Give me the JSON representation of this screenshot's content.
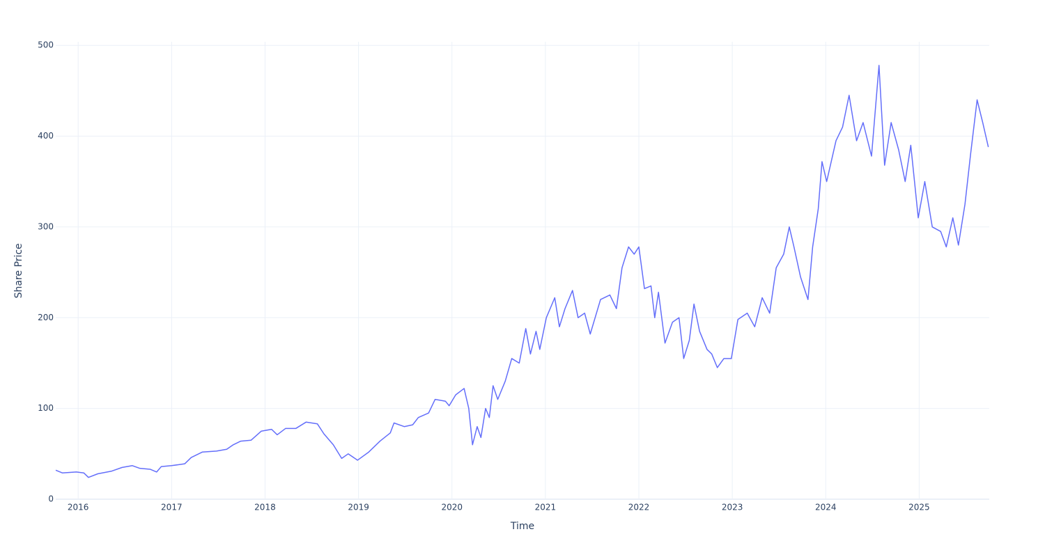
{
  "chart_data": {
    "type": "line",
    "xlabel": "Time",
    "ylabel": "Share Price",
    "xlim": [
      2015.76,
      2025.75
    ],
    "xticks": [
      2016,
      2017,
      2018,
      2019,
      2020,
      2021,
      2022,
      2023,
      2024,
      2025
    ],
    "ylim": [
      0,
      504
    ],
    "yticks": [
      0,
      100,
      200,
      300,
      400,
      500
    ],
    "grid": true,
    "x": [
      2015.76,
      2015.83,
      2015.98,
      2016.06,
      2016.11,
      2016.21,
      2016.36,
      2016.47,
      2016.58,
      2016.66,
      2016.77,
      2016.84,
      2016.89,
      2017.0,
      2017.14,
      2017.21,
      2017.33,
      2017.48,
      2017.59,
      2017.66,
      2017.74,
      2017.85,
      2017.96,
      2018.07,
      2018.13,
      2018.22,
      2018.33,
      2018.44,
      2018.56,
      2018.63,
      2018.73,
      2018.82,
      2018.89,
      2018.99,
      2019.11,
      2019.23,
      2019.34,
      2019.38,
      2019.49,
      2019.58,
      2019.64,
      2019.75,
      2019.82,
      2019.93,
      2019.97,
      2020.04,
      2020.13,
      2020.18,
      2020.22,
      2020.27,
      2020.31,
      2020.36,
      2020.4,
      2020.44,
      2020.49,
      2020.57,
      2020.64,
      2020.72,
      2020.79,
      2020.84,
      2020.9,
      2020.94,
      2021.01,
      2021.1,
      2021.15,
      2021.21,
      2021.29,
      2021.35,
      2021.42,
      2021.48,
      2021.59,
      2021.69,
      2021.76,
      2021.82,
      2021.89,
      2021.95,
      2022.0,
      2022.06,
      2022.13,
      2022.17,
      2022.21,
      2022.28,
      2022.36,
      2022.43,
      2022.48,
      2022.54,
      2022.59,
      2022.65,
      2022.73,
      2022.78,
      2022.84,
      2022.91,
      2022.99,
      2023.06,
      2023.16,
      2023.24,
      2023.32,
      2023.4,
      2023.47,
      2023.55,
      2023.61,
      2023.66,
      2023.73,
      2023.81,
      2023.86,
      2023.92,
      2023.96,
      2024.01,
      2024.11,
      2024.18,
      2024.25,
      2024.33,
      2024.4,
      2024.49,
      2024.57,
      2024.63,
      2024.7,
      2024.78,
      2024.85,
      2024.91,
      2024.99,
      2025.06,
      2025.14,
      2025.23,
      2025.29,
      2025.36,
      2025.42,
      2025.49,
      2025.55,
      2025.62,
      2025.68,
      2025.74
    ],
    "series": [
      {
        "name": "Share Price",
        "color": "#636efa",
        "values": [
          32,
          29,
          30,
          29,
          24,
          28,
          31,
          35,
          37,
          34,
          33,
          30,
          36,
          37,
          39,
          46,
          52,
          53,
          55,
          60,
          64,
          65,
          75,
          77,
          71,
          78,
          78,
          85,
          83,
          72,
          60,
          45,
          50,
          43,
          52,
          64,
          73,
          84,
          80,
          82,
          90,
          95,
          110,
          108,
          103,
          115,
          122,
          100,
          60,
          80,
          68,
          100,
          90,
          125,
          110,
          130,
          155,
          150,
          188,
          160,
          185,
          165,
          200,
          222,
          190,
          210,
          230,
          200,
          205,
          182,
          220,
          225,
          210,
          255,
          278,
          270,
          278,
          232,
          235,
          200,
          228,
          172,
          195,
          200,
          155,
          175,
          215,
          185,
          165,
          160,
          145,
          155,
          155,
          198,
          205,
          190,
          222,
          205,
          255,
          270,
          300,
          278,
          245,
          220,
          278,
          320,
          372,
          350,
          395,
          410,
          445,
          395,
          415,
          378,
          478,
          368,
          415,
          385,
          350,
          390,
          310,
          350,
          300,
          295,
          278,
          310,
          280,
          325,
          380,
          440,
          415,
          388
        ]
      }
    ]
  }
}
